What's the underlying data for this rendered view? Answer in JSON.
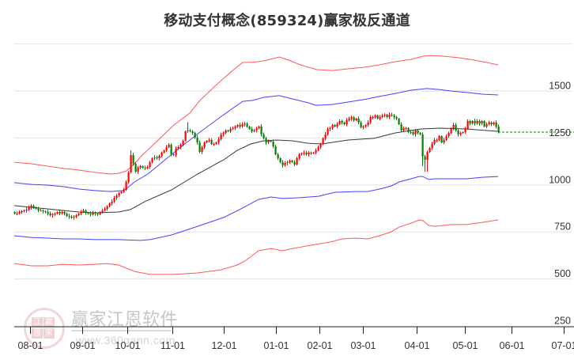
{
  "title": "移动支付概念(859324)赢家极反通道",
  "watermark": {
    "logo_chars": [
      "江",
      "赢",
      "恩",
      "家"
    ],
    "brand": "赢家江恩软件",
    "url": "www.360gann.com"
  },
  "colors": {
    "up_candle": "#ff0000",
    "down_candle": "#008000",
    "outer_band": "#ff3b3b",
    "inner_band": "#2d2dff",
    "middle_line": "#222222",
    "grid": "#e2e2e2",
    "axis": "#222222"
  },
  "chart_data": {
    "type": "candlestick",
    "title": "移动支付概念(859324)赢家极反通道",
    "xlabel": "",
    "ylabel": "",
    "ylim": [
      250,
      1815
    ],
    "grid": true,
    "y_axis_position": "right",
    "y_ticks": [
      250,
      500,
      750,
      1000,
      1250,
      1500
    ],
    "gridlines": [
      500,
      750,
      1000,
      1250,
      1500,
      1750
    ],
    "x_ticks": [
      {
        "label": "08-01",
        "i": 6.7
      },
      {
        "label": "09-01",
        "i": 28.7
      },
      {
        "label": "10-01",
        "i": 47.7
      },
      {
        "label": "11-01",
        "i": 66.7
      },
      {
        "label": "12-01",
        "i": 88.3
      },
      {
        "label": "01-01",
        "i": 110.3
      },
      {
        "label": "02-01",
        "i": 128.7
      },
      {
        "label": "03-01",
        "i": 147
      },
      {
        "label": "04-01",
        "i": 169.7
      },
      {
        "label": "05-01",
        "i": 190
      },
      {
        "label": "06-01",
        "i": 209.7
      },
      {
        "label": "07-01",
        "i": 231.7
      }
    ],
    "candles": {
      "first_open": 856,
      "close": [
        848,
        848,
        856,
        860,
        864,
        869,
        881,
        890,
        881,
        873,
        864,
        864,
        860,
        856,
        848,
        839,
        843,
        848,
        856,
        848,
        856,
        848,
        835,
        831,
        827,
        831,
        839,
        848,
        856,
        864,
        852,
        848,
        843,
        852,
        848,
        843,
        856,
        864,
        873,
        886,
        902,
        911,
        932,
        944,
        957,
        965,
        974,
        1016,
        1067,
        1159,
        1113,
        1071,
        1092,
        1100,
        1092,
        1088,
        1096,
        1121,
        1142,
        1146,
        1142,
        1155,
        1172,
        1184,
        1201,
        1214,
        1163,
        1159,
        1193,
        1201,
        1214,
        1235,
        1285,
        1290,
        1285,
        1277,
        1252,
        1226,
        1176,
        1201,
        1226,
        1235,
        1239,
        1218,
        1218,
        1226,
        1243,
        1269,
        1277,
        1290,
        1285,
        1298,
        1302,
        1311,
        1319,
        1311,
        1323,
        1327,
        1311,
        1298,
        1285,
        1290,
        1302,
        1311,
        1269,
        1248,
        1226,
        1235,
        1231,
        1205,
        1163,
        1142,
        1121,
        1104,
        1117,
        1121,
        1130,
        1121,
        1109,
        1142,
        1163,
        1168,
        1172,
        1163,
        1172,
        1168,
        1172,
        1184,
        1201,
        1218,
        1248,
        1269,
        1298,
        1302,
        1319,
        1311,
        1323,
        1340,
        1332,
        1323,
        1344,
        1353,
        1361,
        1344,
        1353,
        1332,
        1306,
        1311,
        1319,
        1332,
        1361,
        1361,
        1370,
        1353,
        1361,
        1370,
        1374,
        1361,
        1374,
        1370,
        1361,
        1353,
        1323,
        1290,
        1302,
        1302,
        1281,
        1281,
        1269,
        1290,
        1277,
        1269,
        1151,
        1134,
        1176,
        1197,
        1218,
        1239,
        1239,
        1260,
        1226,
        1239,
        1260,
        1277,
        1302,
        1319,
        1290,
        1269,
        1277,
        1281,
        1298,
        1340,
        1327,
        1340,
        1327,
        1340,
        1327,
        1340,
        1311,
        1323,
        1332,
        1323,
        1332,
        1311,
        1281
      ],
      "high_overrides": {
        "49": 1184,
        "73": 1332
      },
      "low_overrides": {
        "172": 1100,
        "173": 1071,
        "174": 1071
      }
    },
    "series": [
      {
        "name": "upper_outer_band",
        "color": "#ff3b3b",
        "points": [
          [
            0,
            1121
          ],
          [
            7.3,
            1113
          ],
          [
            14,
            1100
          ],
          [
            20.7,
            1088
          ],
          [
            27.3,
            1079
          ],
          [
            34,
            1067
          ],
          [
            40.7,
            1058
          ],
          [
            44,
            1062
          ],
          [
            47.3,
            1075
          ],
          [
            50.7,
            1113
          ],
          [
            54,
            1159
          ],
          [
            60.7,
            1239
          ],
          [
            67.3,
            1319
          ],
          [
            74,
            1382
          ],
          [
            78.3,
            1450
          ],
          [
            85,
            1530
          ],
          [
            91.7,
            1605
          ],
          [
            96.3,
            1652
          ],
          [
            100.7,
            1652
          ],
          [
            105,
            1660
          ],
          [
            111.7,
            1681
          ],
          [
            115.7,
            1664
          ],
          [
            120.7,
            1639
          ],
          [
            127.3,
            1614
          ],
          [
            134,
            1609
          ],
          [
            140.7,
            1618
          ],
          [
            147.3,
            1626
          ],
          [
            154,
            1639
          ],
          [
            160.7,
            1656
          ],
          [
            167.3,
            1668
          ],
          [
            172.3,
            1685
          ],
          [
            175.7,
            1689
          ],
          [
            180.7,
            1685
          ],
          [
            187.3,
            1677
          ],
          [
            194,
            1664
          ],
          [
            199,
            1652
          ],
          [
            204,
            1639
          ]
        ]
      },
      {
        "name": "upper_inner_band",
        "color": "#2d2dff",
        "points": [
          [
            0,
            1012
          ],
          [
            7.3,
            1003
          ],
          [
            14,
            999
          ],
          [
            20.7,
            991
          ],
          [
            27.3,
            978
          ],
          [
            34,
            970
          ],
          [
            40.7,
            965
          ],
          [
            45.7,
            970
          ],
          [
            48,
            987
          ],
          [
            50.7,
            1016
          ],
          [
            56.3,
            1058
          ],
          [
            67.3,
            1172
          ],
          [
            78.3,
            1281
          ],
          [
            87.3,
            1365
          ],
          [
            96.3,
            1445
          ],
          [
            100.7,
            1450
          ],
          [
            105,
            1466
          ],
          [
            111.7,
            1475
          ],
          [
            117.3,
            1458
          ],
          [
            124,
            1437
          ],
          [
            127.3,
            1424
          ],
          [
            134,
            1428
          ],
          [
            140.7,
            1441
          ],
          [
            147.3,
            1454
          ],
          [
            154,
            1471
          ],
          [
            160.7,
            1487
          ],
          [
            167.3,
            1504
          ],
          [
            174,
            1513
          ],
          [
            179,
            1508
          ],
          [
            184,
            1500
          ],
          [
            190.7,
            1492
          ],
          [
            197.3,
            1483
          ],
          [
            204,
            1479
          ]
        ]
      },
      {
        "name": "middle_line",
        "color": "#222222",
        "points": [
          [
            0,
            890
          ],
          [
            7.3,
            881
          ],
          [
            14,
            873
          ],
          [
            20.7,
            864
          ],
          [
            27.3,
            856
          ],
          [
            34,
            852
          ],
          [
            44,
            856
          ],
          [
            49,
            869
          ],
          [
            55,
            911
          ],
          [
            66.3,
            974
          ],
          [
            77.3,
            1058
          ],
          [
            88.3,
            1134
          ],
          [
            94,
            1184
          ],
          [
            99.7,
            1218
          ],
          [
            105,
            1235
          ],
          [
            110.7,
            1239
          ],
          [
            117.3,
            1235
          ],
          [
            124,
            1222
          ],
          [
            129.7,
            1218
          ],
          [
            140.7,
            1239
          ],
          [
            151.7,
            1248
          ],
          [
            160.7,
            1277
          ],
          [
            167.3,
            1290
          ],
          [
            171.7,
            1298
          ],
          [
            179.7,
            1302
          ],
          [
            190.7,
            1298
          ],
          [
            204,
            1285
          ]
        ]
      },
      {
        "name": "lower_inner_band",
        "color": "#2d2dff",
        "points": [
          [
            0,
            730
          ],
          [
            7.3,
            721
          ],
          [
            14,
            717
          ],
          [
            20.7,
            713
          ],
          [
            27.3,
            713
          ],
          [
            34,
            709
          ],
          [
            44,
            709
          ],
          [
            53,
            705
          ],
          [
            57.3,
            709
          ],
          [
            66.3,
            734
          ],
          [
            77.3,
            780
          ],
          [
            88.3,
            827
          ],
          [
            95,
            869
          ],
          [
            103,
            923
          ],
          [
            108.3,
            936
          ],
          [
            113,
            928
          ],
          [
            119.7,
            932
          ],
          [
            128.3,
            940
          ],
          [
            135,
            961
          ],
          [
            144,
            965
          ],
          [
            149,
            965
          ],
          [
            154,
            978
          ],
          [
            159,
            995
          ],
          [
            162.3,
            1016
          ],
          [
            167.3,
            1033
          ],
          [
            170.7,
            1045
          ],
          [
            172.3,
            1045
          ],
          [
            174.7,
            1029
          ],
          [
            177.3,
            1033
          ],
          [
            184,
            1033
          ],
          [
            190.7,
            1033
          ],
          [
            197.3,
            1041
          ],
          [
            204,
            1045
          ]
        ]
      },
      {
        "name": "lower_outer_band",
        "color": "#ff3b3b",
        "points": [
          [
            0,
            582
          ],
          [
            7.3,
            570
          ],
          [
            14,
            570
          ],
          [
            20.7,
            578
          ],
          [
            27.3,
            574
          ],
          [
            34,
            578
          ],
          [
            39,
            582
          ],
          [
            44,
            574
          ],
          [
            50.7,
            540
          ],
          [
            57.3,
            524
          ],
          [
            67.3,
            524
          ],
          [
            77.3,
            532
          ],
          [
            87.3,
            549
          ],
          [
            94,
            574
          ],
          [
            97.3,
            595
          ],
          [
            103,
            650
          ],
          [
            108.3,
            662
          ],
          [
            113,
            650
          ],
          [
            117.3,
            662
          ],
          [
            127.3,
            684
          ],
          [
            133,
            696
          ],
          [
            138.3,
            713
          ],
          [
            144,
            717
          ],
          [
            149,
            713
          ],
          [
            154,
            730
          ],
          [
            159,
            751
          ],
          [
            162.3,
            776
          ],
          [
            167.3,
            797
          ],
          [
            170.7,
            814
          ],
          [
            172.3,
            810
          ],
          [
            174.7,
            785
          ],
          [
            177.3,
            780
          ],
          [
            184,
            789
          ],
          [
            190.7,
            789
          ],
          [
            197.3,
            801
          ],
          [
            204,
            814
          ]
        ]
      }
    ],
    "last_price_line": {
      "value": 1281,
      "from_i": 204,
      "to_i": 236,
      "style": "dashed",
      "color": "#008000"
    }
  }
}
